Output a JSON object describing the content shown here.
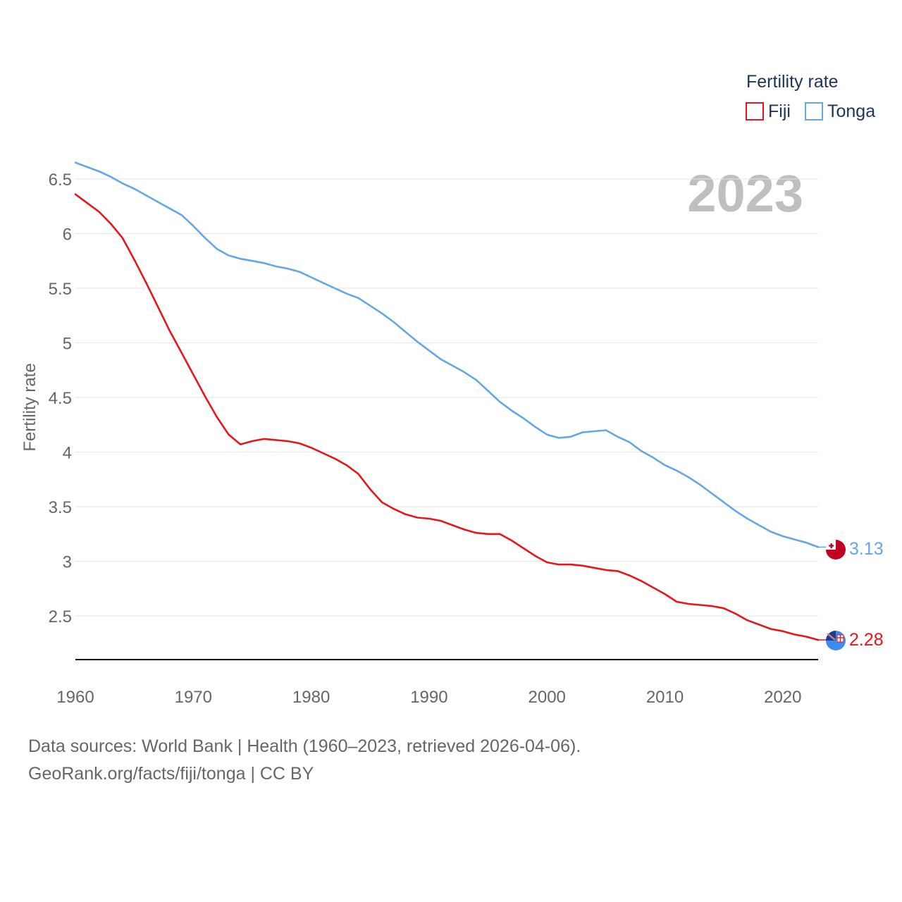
{
  "chart_data": {
    "type": "line",
    "title": "",
    "legend_title": "Fertility rate",
    "ylabel": "Fertility rate",
    "xlabel": "",
    "year_label": "2023",
    "xlim": [
      1960,
      2023
    ],
    "ylim": [
      2.1,
      6.7
    ],
    "x_ticks": [
      1960,
      1970,
      1980,
      1990,
      2000,
      2010,
      2020
    ],
    "y_ticks": [
      2.5,
      3,
      3.5,
      4,
      4.5,
      5,
      5.5,
      6,
      6.5
    ],
    "legend_position": "top-right",
    "grid": true,
    "x": [
      1960,
      1961,
      1962,
      1963,
      1964,
      1965,
      1966,
      1967,
      1968,
      1969,
      1970,
      1971,
      1972,
      1973,
      1974,
      1975,
      1976,
      1977,
      1978,
      1979,
      1980,
      1981,
      1982,
      1983,
      1984,
      1985,
      1986,
      1987,
      1988,
      1989,
      1990,
      1991,
      1992,
      1993,
      1994,
      1995,
      1996,
      1997,
      1998,
      1999,
      2000,
      2001,
      2002,
      2003,
      2004,
      2005,
      2006,
      2007,
      2008,
      2009,
      2010,
      2011,
      2012,
      2013,
      2014,
      2015,
      2016,
      2017,
      2018,
      2019,
      2020,
      2021,
      2022,
      2023
    ],
    "series": [
      {
        "name": "Fiji",
        "color": "#e8161b",
        "end_label": "2.28",
        "values": [
          6.36,
          6.28,
          6.2,
          6.09,
          5.96,
          5.76,
          5.55,
          5.33,
          5.11,
          4.91,
          4.71,
          4.51,
          4.32,
          4.16,
          4.07,
          4.1,
          4.12,
          4.11,
          4.1,
          4.08,
          4.04,
          3.99,
          3.94,
          3.88,
          3.8,
          3.66,
          3.54,
          3.48,
          3.43,
          3.4,
          3.39,
          3.37,
          3.33,
          3.29,
          3.26,
          3.25,
          3.25,
          3.19,
          3.12,
          3.05,
          2.99,
          2.97,
          2.97,
          2.96,
          2.94,
          2.92,
          2.91,
          2.87,
          2.82,
          2.76,
          2.7,
          2.63,
          2.61,
          2.6,
          2.59,
          2.57,
          2.52,
          2.46,
          2.42,
          2.38,
          2.36,
          2.33,
          2.31,
          2.28
        ]
      },
      {
        "name": "Tonga",
        "color": "#64a7e6",
        "end_label": "3.13",
        "values": [
          6.65,
          6.61,
          6.57,
          6.52,
          6.46,
          6.41,
          6.35,
          6.29,
          6.23,
          6.17,
          6.07,
          5.96,
          5.86,
          5.8,
          5.77,
          5.75,
          5.73,
          5.7,
          5.68,
          5.65,
          5.6,
          5.55,
          5.5,
          5.45,
          5.41,
          5.34,
          5.27,
          5.19,
          5.1,
          5.01,
          4.93,
          4.85,
          4.79,
          4.73,
          4.66,
          4.56,
          4.46,
          4.38,
          4.31,
          4.23,
          4.16,
          4.13,
          4.14,
          4.18,
          4.19,
          4.2,
          4.14,
          4.09,
          4.01,
          3.95,
          3.88,
          3.83,
          3.77,
          3.7,
          3.62,
          3.54,
          3.46,
          3.39,
          3.33,
          3.27,
          3.23,
          3.2,
          3.17,
          3.13
        ]
      }
    ]
  },
  "footer": {
    "line1": "Data sources: World Bank | Health (1960–2023, retrieved 2026-04-06).",
    "line2": "GeoRank.org/facts/fiji/tonga | CC BY"
  }
}
